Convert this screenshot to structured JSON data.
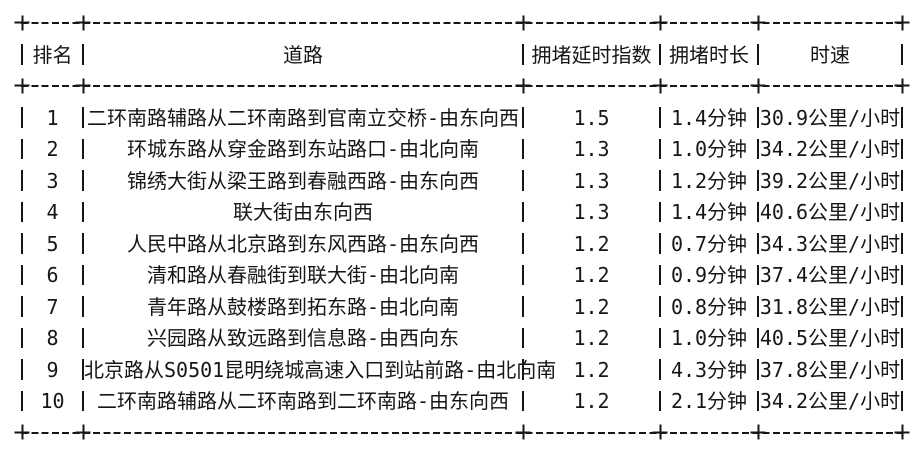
{
  "page": {
    "background": "#ffffff",
    "text_color": "#161616"
  },
  "table": {
    "columns": [
      {
        "label": "排名"
      },
      {
        "label": "道路"
      },
      {
        "label": "拥堵延时指数"
      },
      {
        "label": "拥堵时长"
      },
      {
        "label": "时速"
      }
    ],
    "rows": [
      {
        "rank": "1",
        "road": "二环南路辅路从二环南路到官南立交桥-由东向西",
        "delay_index": "1.5",
        "duration": "1.4分钟",
        "speed": "30.9公里/小时"
      },
      {
        "rank": "2",
        "road": "环城东路从穿金路到东站路口-由北向南",
        "delay_index": "1.3",
        "duration": "1.0分钟",
        "speed": "34.2公里/小时"
      },
      {
        "rank": "3",
        "road": "锦绣大街从梁王路到春融西路-由东向西",
        "delay_index": "1.3",
        "duration": "1.2分钟",
        "speed": "39.2公里/小时"
      },
      {
        "rank": "4",
        "road": "联大街由东向西",
        "delay_index": "1.3",
        "duration": "1.4分钟",
        "speed": "40.6公里/小时"
      },
      {
        "rank": "5",
        "road": "人民中路从北京路到东风西路-由东向西",
        "delay_index": "1.2",
        "duration": "0.7分钟",
        "speed": "34.3公里/小时"
      },
      {
        "rank": "6",
        "road": "清和路从春融街到联大街-由北向南",
        "delay_index": "1.2",
        "duration": "0.9分钟",
        "speed": "37.4公里/小时"
      },
      {
        "rank": "7",
        "road": "青年路从鼓楼路到拓东路-由北向南",
        "delay_index": "1.2",
        "duration": "0.8分钟",
        "speed": "31.8公里/小时"
      },
      {
        "rank": "8",
        "road": "兴园路从致远路到信息路-由西向东",
        "delay_index": "1.2",
        "duration": "1.0分钟",
        "speed": "40.5公里/小时"
      },
      {
        "rank": "9",
        "road": "北京路从S0501昆明绕城高速入口到站前路-由北向南",
        "delay_index": "1.2",
        "duration": "4.3分钟",
        "speed": "37.8公里/小时"
      },
      {
        "rank": "10",
        "road": "二环南路辅路从二环南路到二环南路-由东向西",
        "delay_index": "1.2",
        "duration": "2.1分钟",
        "speed": "34.2公里/小时"
      }
    ]
  },
  "chart_data": {
    "type": "table",
    "title": "",
    "columns": [
      "排名",
      "道路",
      "拥堵延时指数",
      "拥堵时长",
      "时速"
    ],
    "rows": [
      [
        "1",
        "二环南路辅路从二环南路到官南立交桥-由东向西",
        "1.5",
        "1.4分钟",
        "30.9公里/小时"
      ],
      [
        "2",
        "环城东路从穿金路到东站路口-由北向南",
        "1.3",
        "1.0分钟",
        "34.2公里/小时"
      ],
      [
        "3",
        "锦绣大街从梁王路到春融西路-由东向西",
        "1.3",
        "1.2分钟",
        "39.2公里/小时"
      ],
      [
        "4",
        "联大街由东向西",
        "1.3",
        "1.4分钟",
        "40.6公里/小时"
      ],
      [
        "5",
        "人民中路从北京路到东风西路-由东向西",
        "1.2",
        "0.7分钟",
        "34.3公里/小时"
      ],
      [
        "6",
        "清和路从春融街到联大街-由北向南",
        "1.2",
        "0.9分钟",
        "37.4公里/小时"
      ],
      [
        "7",
        "青年路从鼓楼路到拓东路-由北向南",
        "1.2",
        "0.8分钟",
        "31.8公里/小时"
      ],
      [
        "8",
        "兴园路从致远路到信息路-由西向东",
        "1.2",
        "1.0分钟",
        "40.5公里/小时"
      ],
      [
        "9",
        "北京路从S0501昆明绕城高速入口到站前路-由北向南",
        "1.2",
        "4.3分钟",
        "37.8公里/小时"
      ],
      [
        "10",
        "二环南路辅路从二环南路到二环南路-由东向西",
        "1.2",
        "2.1分钟",
        "34.2公里/小时"
      ]
    ],
    "numeric_series": [
      {
        "name": "拥堵延时指数",
        "values": [
          1.5,
          1.3,
          1.3,
          1.3,
          1.2,
          1.2,
          1.2,
          1.2,
          1.2,
          1.2
        ]
      },
      {
        "name": "拥堵时长(分钟)",
        "values": [
          1.4,
          1.0,
          1.2,
          1.4,
          0.7,
          0.9,
          0.8,
          1.0,
          4.3,
          2.1
        ]
      },
      {
        "name": "时速(公里/小时)",
        "values": [
          30.9,
          34.2,
          39.2,
          40.6,
          34.3,
          37.4,
          31.8,
          40.5,
          37.8,
          34.2
        ]
      }
    ]
  }
}
